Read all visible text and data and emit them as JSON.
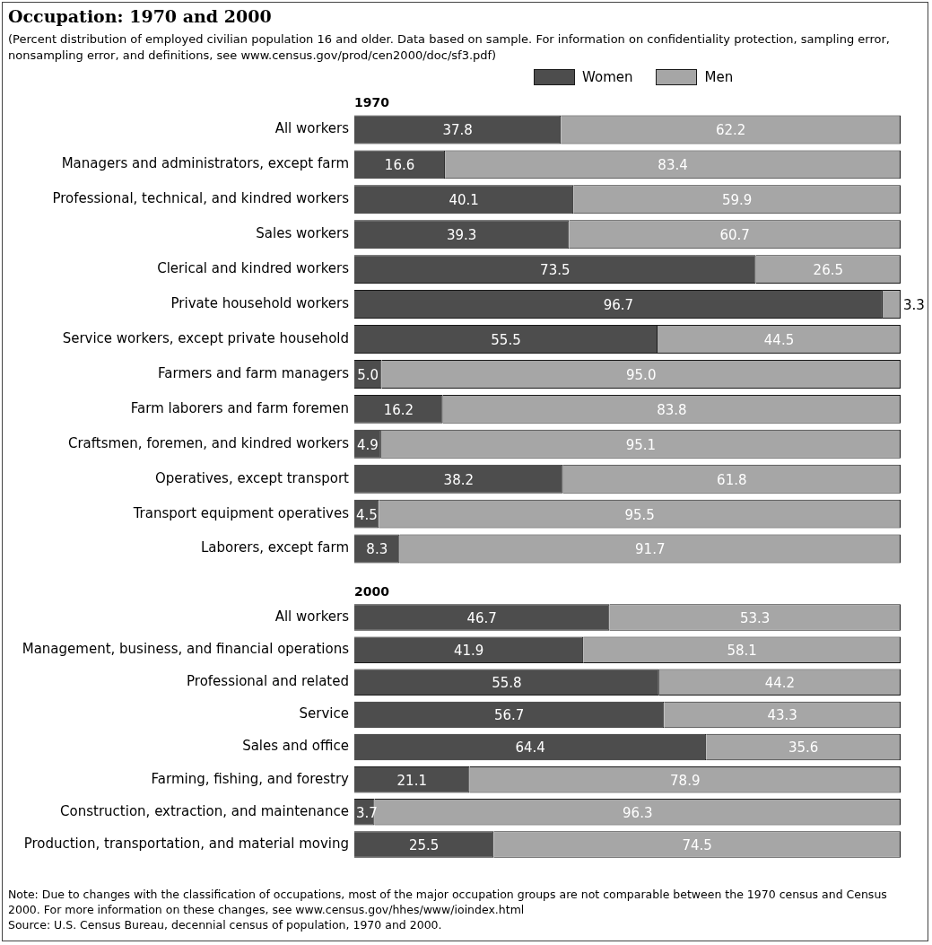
{
  "chart_data": [
    {
      "type": "other",
      "title": "Occupation: 1970 and 2000",
      "subtitle": "(Percent distribution of employed civilian population 16 and older.  Data based on sample. For information on confidentiality protection, sampling error, nonsampling error, and definitions, see www.census.gov/prod/cen2000/doc/sf3.pdf)"
    },
    {
      "type": "bar",
      "title": "1970",
      "orientation": "horizontal",
      "stacked": true,
      "grid": false,
      "legend": "top",
      "tick_labels": "y",
      "xlim": [
        0,
        100
      ],
      "categories": [
        "All workers",
        "Managers and administrators, except farm",
        "Professional, technical, and kindred workers",
        "Sales workers",
        "Clerical and kindred workers",
        "Private household workers",
        "Service workers, except private household",
        "Farmers and farm managers",
        "Farm laborers and farm foremen",
        "Craftsmen, foremen, and kindred workers",
        "Operatives, except transport",
        "Transport equipment operatives",
        "Laborers, except farm"
      ],
      "series": [
        {
          "name": "Women",
          "color": "#4d4d4d",
          "values": [
            37.8,
            16.6,
            40.1,
            39.3,
            73.5,
            96.7,
            55.5,
            5.0,
            16.2,
            4.9,
            38.2,
            4.5,
            8.3
          ],
          "value_labels": [
            "37.8",
            "16.6",
            "40.1",
            "39.3",
            "73.5",
            "96.7",
            "55.5",
            "5.0",
            "16.2",
            "4.9",
            "38.2",
            "4.5",
            "8.3"
          ]
        },
        {
          "name": "Men",
          "color": "#a6a6a6",
          "values": [
            62.2,
            83.4,
            59.9,
            60.7,
            26.5,
            3.3,
            44.5,
            95.0,
            83.8,
            95.1,
            61.8,
            95.5,
            91.7
          ],
          "value_labels": [
            "62.2",
            "83.4",
            "59.9",
            "60.7",
            "26.5",
            "3.3",
            "44.5",
            "95.0",
            "83.8",
            "95.1",
            "61.8",
            "95.5",
            "91.7"
          ]
        }
      ]
    },
    {
      "type": "bar",
      "title": "2000",
      "orientation": "horizontal",
      "stacked": true,
      "grid": false,
      "tick_labels": "y",
      "xlim": [
        0,
        100
      ],
      "categories": [
        "All workers",
        "Management, business, and financial operations",
        "Professional and related",
        "Service",
        "Sales and office",
        "Farming, fishing, and forestry",
        "Construction, extraction, and maintenance",
        "Production, transportation, and material moving"
      ],
      "series": [
        {
          "color": "#4d4d4d",
          "values": [
            46.7,
            41.9,
            55.8,
            56.7,
            64.4,
            21.1,
            3.7,
            25.5
          ],
          "value_labels": [
            "46.7",
            "41.9",
            "55.8",
            "56.7",
            "64.4",
            "21.1",
            "3.7",
            "25.5"
          ]
        },
        {
          "color": "#a6a6a6",
          "values": [
            53.3,
            58.1,
            44.2,
            43.3,
            35.6,
            78.9,
            96.3,
            74.5
          ],
          "value_labels": [
            "53.3",
            "58.1",
            "44.2",
            "43.3",
            "35.6",
            "78.9",
            "96.3",
            "74.5"
          ]
        }
      ],
      "annotations": [
        "Note: Due to changes with the classification of occupations, most of the major occupation groups are not comparable between the 1970 census and Census 2000.  For more information on these changes, see www.census.gov/hhes/www/ioindex.html",
        "Source:  U.S. Census Bureau, decennial census of population, 1970 and 2000."
      ]
    }
  ]
}
